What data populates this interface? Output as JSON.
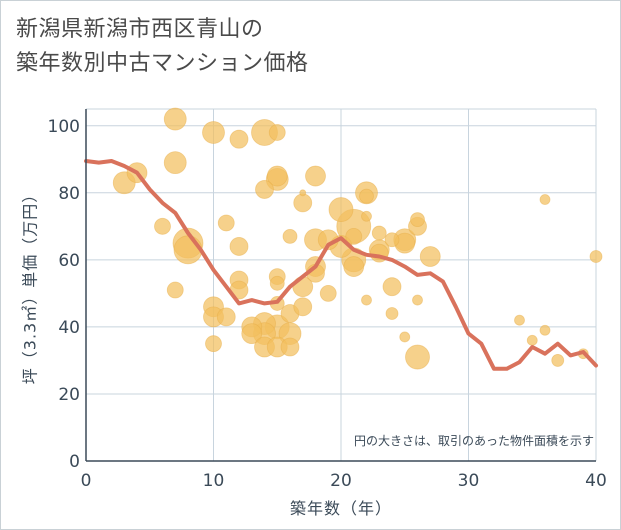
{
  "page": {
    "title_line1": "新潟県新潟市西区青山の",
    "title_line2": "築年数別中古マンション価格"
  },
  "colors": {
    "bubble": "#f2bf5e",
    "line": "#d9725c",
    "grid": "#c8d4de",
    "axis": "#3b4a58"
  },
  "chart_data": {
    "type": "scatter",
    "xlabel": "築年数（年）",
    "ylabel": "坪（3.3㎡）単価（万円）",
    "xlim": [
      0,
      40
    ],
    "ylim": [
      0,
      105
    ],
    "xticks": [
      0,
      10,
      20,
      30,
      40
    ],
    "yticks": [
      0,
      20,
      40,
      60,
      80,
      100
    ],
    "grid": true,
    "annotation": "円の大きさは、取引のあった物件面積を示す",
    "series": [
      {
        "type": "bubble",
        "points": [
          {
            "x": 3,
            "y": 83,
            "s": 11
          },
          {
            "x": 4,
            "y": 86,
            "s": 10
          },
          {
            "x": 6,
            "y": 70,
            "s": 8
          },
          {
            "x": 7,
            "y": 102,
            "s": 11
          },
          {
            "x": 7,
            "y": 89,
            "s": 11
          },
          {
            "x": 7,
            "y": 51,
            "s": 8
          },
          {
            "x": 8,
            "y": 65,
            "s": 15
          },
          {
            "x": 8,
            "y": 63,
            "s": 14
          },
          {
            "x": 10,
            "y": 98,
            "s": 11
          },
          {
            "x": 10,
            "y": 46,
            "s": 10
          },
          {
            "x": 10,
            "y": 43,
            "s": 10
          },
          {
            "x": 10,
            "y": 35,
            "s": 8
          },
          {
            "x": 11,
            "y": 71,
            "s": 8
          },
          {
            "x": 11,
            "y": 43,
            "s": 9
          },
          {
            "x": 12,
            "y": 96,
            "s": 9
          },
          {
            "x": 12,
            "y": 64,
            "s": 9
          },
          {
            "x": 12,
            "y": 54,
            "s": 9
          },
          {
            "x": 12,
            "y": 51,
            "s": 9
          },
          {
            "x": 13,
            "y": 40,
            "s": 10
          },
          {
            "x": 13,
            "y": 38,
            "s": 10
          },
          {
            "x": 14,
            "y": 98,
            "s": 13
          },
          {
            "x": 14,
            "y": 81,
            "s": 9
          },
          {
            "x": 14,
            "y": 41,
            "s": 11
          },
          {
            "x": 14,
            "y": 38,
            "s": 11
          },
          {
            "x": 14,
            "y": 34,
            "s": 10
          },
          {
            "x": 15,
            "y": 98,
            "s": 8
          },
          {
            "x": 15,
            "y": 85,
            "s": 10
          },
          {
            "x": 15,
            "y": 84,
            "s": 11
          },
          {
            "x": 15,
            "y": 55,
            "s": 8
          },
          {
            "x": 15,
            "y": 53,
            "s": 7
          },
          {
            "x": 15,
            "y": 47,
            "s": 7
          },
          {
            "x": 15,
            "y": 40,
            "s": 12
          },
          {
            "x": 15,
            "y": 34,
            "s": 10
          },
          {
            "x": 16,
            "y": 67,
            "s": 7
          },
          {
            "x": 16,
            "y": 44,
            "s": 9
          },
          {
            "x": 16,
            "y": 38,
            "s": 11
          },
          {
            "x": 16,
            "y": 34,
            "s": 9
          },
          {
            "x": 17,
            "y": 80,
            "s": 3
          },
          {
            "x": 17,
            "y": 77,
            "s": 9
          },
          {
            "x": 17,
            "y": 52,
            "s": 10
          },
          {
            "x": 17,
            "y": 46,
            "s": 9
          },
          {
            "x": 18,
            "y": 85,
            "s": 10
          },
          {
            "x": 18,
            "y": 66,
            "s": 11
          },
          {
            "x": 18,
            "y": 58,
            "s": 10
          },
          {
            "x": 18,
            "y": 56,
            "s": 9
          },
          {
            "x": 19,
            "y": 66,
            "s": 10
          },
          {
            "x": 19,
            "y": 50,
            "s": 8
          },
          {
            "x": 20,
            "y": 75,
            "s": 12
          },
          {
            "x": 20,
            "y": 64,
            "s": 11
          },
          {
            "x": 21,
            "y": 70,
            "s": 17
          },
          {
            "x": 21,
            "y": 67,
            "s": 8
          },
          {
            "x": 21,
            "y": 60,
            "s": 12
          },
          {
            "x": 21,
            "y": 58,
            "s": 10
          },
          {
            "x": 22,
            "y": 80,
            "s": 11
          },
          {
            "x": 22,
            "y": 79,
            "s": 7
          },
          {
            "x": 22,
            "y": 73,
            "s": 5
          },
          {
            "x": 22,
            "y": 48,
            "s": 5
          },
          {
            "x": 23,
            "y": 68,
            "s": 7
          },
          {
            "x": 23,
            "y": 63,
            "s": 10
          },
          {
            "x": 23,
            "y": 62,
            "s": 9
          },
          {
            "x": 24,
            "y": 66,
            "s": 7
          },
          {
            "x": 24,
            "y": 52,
            "s": 9
          },
          {
            "x": 24,
            "y": 44,
            "s": 6
          },
          {
            "x": 25,
            "y": 66,
            "s": 11
          },
          {
            "x": 25,
            "y": 65,
            "s": 10
          },
          {
            "x": 25,
            "y": 37,
            "s": 5
          },
          {
            "x": 26,
            "y": 72,
            "s": 7
          },
          {
            "x": 26,
            "y": 70,
            "s": 9
          },
          {
            "x": 26,
            "y": 48,
            "s": 5
          },
          {
            "x": 26,
            "y": 31,
            "s": 12
          },
          {
            "x": 27,
            "y": 61,
            "s": 10
          },
          {
            "x": 34,
            "y": 42,
            "s": 5
          },
          {
            "x": 35,
            "y": 36,
            "s": 5
          },
          {
            "x": 36,
            "y": 78,
            "s": 5
          },
          {
            "x": 36,
            "y": 39,
            "s": 5
          },
          {
            "x": 37,
            "y": 30,
            "s": 6
          },
          {
            "x": 39,
            "y": 32,
            "s": 5
          },
          {
            "x": 40,
            "y": 61,
            "s": 6
          }
        ]
      },
      {
        "type": "line",
        "x": [
          0,
          1,
          2,
          3,
          4,
          5,
          6,
          7,
          8,
          9,
          10,
          11,
          12,
          13,
          14,
          15,
          16,
          17,
          18,
          19,
          20,
          21,
          22,
          23,
          24,
          25,
          26,
          27,
          28,
          29,
          30,
          31,
          32,
          33,
          34,
          35,
          36,
          37,
          38,
          39,
          40
        ],
        "y": [
          89.5,
          89,
          89.5,
          88,
          86,
          81,
          77,
          74,
          68,
          63,
          57,
          52,
          47,
          48,
          47,
          47.5,
          52,
          55,
          58,
          64.5,
          66.5,
          63,
          61.5,
          61,
          60,
          58,
          55.5,
          56,
          53.5,
          46,
          38,
          35,
          27.5,
          27.5,
          29.5,
          34,
          32,
          35,
          31.5,
          32.5,
          28.5
        ]
      }
    ]
  }
}
